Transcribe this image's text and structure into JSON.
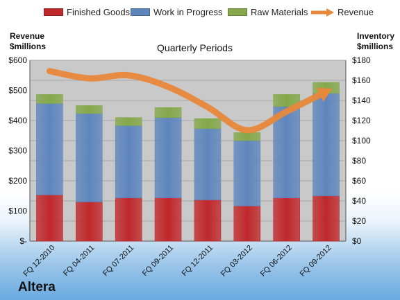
{
  "chart_data": {
    "type": "bar",
    "subtitle": "Quarterly Periods",
    "categories": [
      "FQ 12-2010",
      "FQ 04-2011",
      "FQ 07-2011",
      "FQ 09-2011",
      "FQ 12-2011",
      "FQ 03-2012",
      "FQ 06-2012",
      "FQ 09-2012"
    ],
    "stacked": true,
    "series": [
      {
        "name": "Finished Goods",
        "axis": "right",
        "color": "#c0282b",
        "values": [
          46,
          39,
          43,
          43,
          41,
          35,
          43,
          45
        ]
      },
      {
        "name": "Work in Progress",
        "axis": "right",
        "color": "#5e86bd",
        "values": [
          91,
          88,
          72,
          80,
          71,
          65,
          91,
          102
        ]
      },
      {
        "name": "Raw Materials",
        "axis": "right",
        "color": "#84a84a",
        "values": [
          9,
          8,
          8,
          10,
          10,
          8,
          12,
          11
        ]
      },
      {
        "name": "Revenue",
        "axis": "left",
        "type": "line",
        "color": "#e8883a",
        "values": [
          564,
          540,
          550,
          512,
          445,
          368,
          430,
          496
        ]
      }
    ],
    "y_left": {
      "label": "Revenue\n$millions",
      "range": [
        0,
        600
      ],
      "ticks": [
        "$-",
        "$100",
        "$200",
        "$300",
        "$400",
        "$500",
        "$600"
      ]
    },
    "y_right": {
      "label": "Inventory\n$millions",
      "range": [
        0,
        180
      ],
      "ticks": [
        "$0",
        "$20",
        "$40",
        "$60",
        "$80",
        "$100",
        "$120",
        "$140",
        "$160",
        "$180"
      ]
    },
    "grid": true,
    "legend_position": "top"
  },
  "headers": {
    "left_line1": "Revenue",
    "left_line2": "$millions",
    "right_line1": "Inventory",
    "right_line2": "$millions"
  },
  "brand": "Altera"
}
